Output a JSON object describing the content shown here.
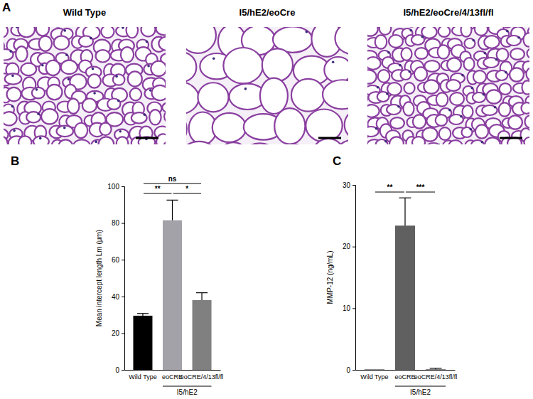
{
  "figure": {
    "panel_labels": [
      "A",
      "B",
      "C"
    ],
    "images": [
      "Wild Type",
      "I5/hE2/eoCre",
      "I5/hE2/eoCre/4/13fl/fl"
    ]
  },
  "chart_data": [
    {
      "type": "bar",
      "y_label": "Mean intercept length Lm (μm)",
      "categories": [
        "Wild Type",
        "eoCRE",
        "eoCRE/4/13fl/fl"
      ],
      "values": [
        29.5,
        81.5,
        38
      ],
      "errors": [
        1.2,
        11,
        4
      ],
      "colors": [
        "#000000",
        "#a2a2a8",
        "#808080"
      ],
      "ylim": [
        0,
        100
      ],
      "yticks": [
        0,
        20,
        40,
        60,
        80,
        100
      ],
      "group_labels": [
        {
          "label": "I5/hE2",
          "from": 1,
          "to": 2
        }
      ],
      "significance": [
        {
          "from": 0,
          "to": 2,
          "label": "ns"
        },
        {
          "from": 0,
          "to": 1,
          "label": "**"
        },
        {
          "from": 1,
          "to": 2,
          "label": "*"
        }
      ]
    },
    {
      "type": "bar",
      "y_label": "MMP-12  (ng/mL)",
      "categories": [
        "Wild Type",
        "eoCRE",
        "eoCRE/4/13fl/fl"
      ],
      "values": [
        0.05,
        23.4,
        0.1
      ],
      "errors": [
        null,
        4.5,
        0.15
      ],
      "colors": [
        "#000000",
        "#606060",
        "#707070"
      ],
      "ylim": [
        0,
        30
      ],
      "yticks": [
        0,
        10,
        20,
        30
      ],
      "group_labels": [
        {
          "label": "I5/hE2",
          "from": 1,
          "to": 2
        }
      ],
      "significance": [
        {
          "from": 0,
          "to": 1,
          "label": "**"
        },
        {
          "from": 1,
          "to": 2,
          "label": "***"
        }
      ]
    }
  ]
}
